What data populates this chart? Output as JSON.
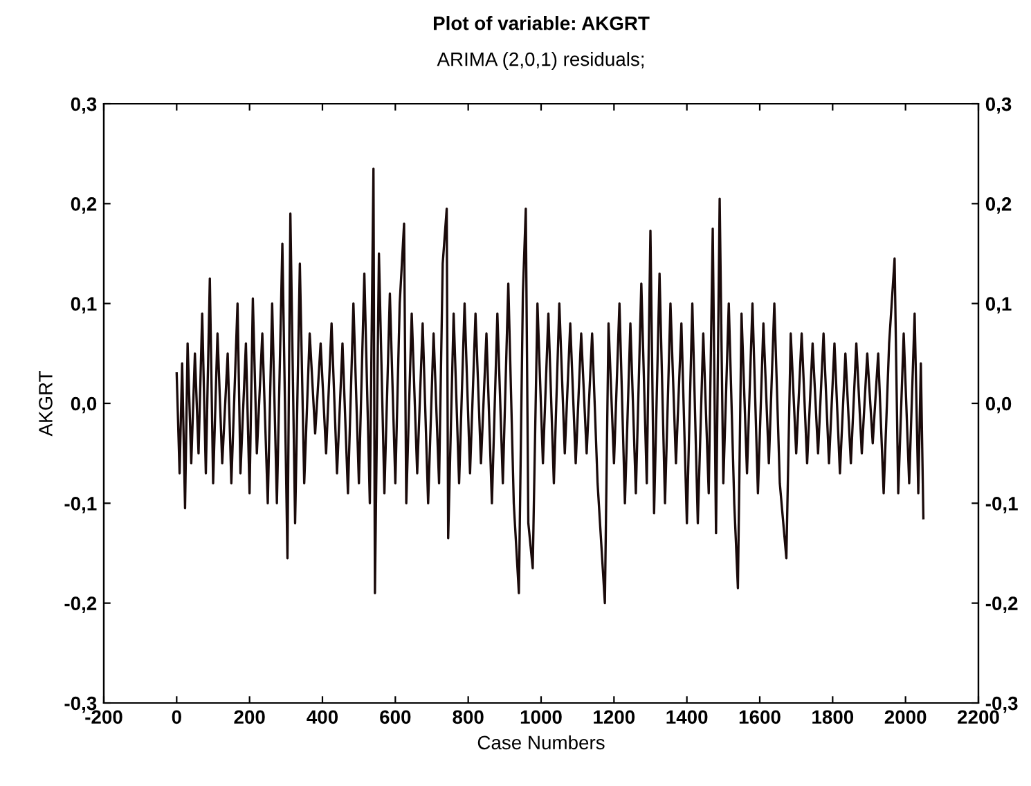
{
  "chart_data": {
    "type": "line",
    "title": "Plot of variable: AKGRT",
    "subtitle": "ARIMA (2,0,1) residuals;",
    "xlabel": "Case Numbers",
    "ylabel": "AKGRT",
    "xlim": [
      -200,
      2200
    ],
    "xticks": [
      -200,
      0,
      200,
      400,
      600,
      800,
      1000,
      1200,
      1400,
      1600,
      1800,
      2000,
      2200
    ],
    "ylim": [
      -0.3,
      0.3
    ],
    "yticks": [
      {
        "value": -0.3,
        "label": "-0,3"
      },
      {
        "value": -0.2,
        "label": "-0,2"
      },
      {
        "value": -0.1,
        "label": "-0,1"
      },
      {
        "value": 0.0,
        "label": "0,0"
      },
      {
        "value": 0.1,
        "label": "0,1"
      },
      {
        "value": 0.2,
        "label": "0,2"
      },
      {
        "value": 0.3,
        "label": "0,3"
      }
    ],
    "y2lim": [
      -0.3,
      0.3
    ],
    "y2ticks": [
      {
        "value": -0.3,
        "label": "-0,3"
      },
      {
        "value": -0.2,
        "label": "-0,2"
      },
      {
        "value": -0.1,
        "label": "-0,1"
      },
      {
        "value": 0.0,
        "label": "0,0"
      },
      {
        "value": 0.1,
        "label": "0,1"
      },
      {
        "value": 0.2,
        "label": "0,2"
      },
      {
        "value": 0.3,
        "label": "0,3"
      }
    ],
    "grid": false,
    "legend": false,
    "series": [
      {
        "color": "#1a0a0a",
        "x": [
          0,
          8,
          15,
          23,
          30,
          40,
          50,
          60,
          70,
          80,
          91,
          100,
          112,
          125,
          140,
          150,
          167,
          175,
          190,
          200,
          209,
          220,
          235,
          250,
          262,
          275,
          290,
          304,
          312,
          325,
          338,
          350,
          365,
          380,
          395,
          410,
          425,
          440,
          455,
          470,
          485,
          500,
          515,
          530,
          540,
          544,
          555,
          570,
          585,
          600,
          612,
          624,
          630,
          645,
          660,
          675,
          690,
          705,
          720,
          730,
          741,
          745,
          760,
          775,
          790,
          805,
          820,
          835,
          850,
          865,
          880,
          895,
          910,
          925,
          939,
          950,
          958,
          965,
          977,
          990,
          1005,
          1020,
          1035,
          1050,
          1065,
          1080,
          1095,
          1110,
          1125,
          1140,
          1155,
          1175,
          1185,
          1200,
          1215,
          1230,
          1245,
          1260,
          1275,
          1290,
          1300,
          1310,
          1325,
          1340,
          1355,
          1370,
          1385,
          1400,
          1415,
          1430,
          1445,
          1460,
          1471,
          1480,
          1490,
          1500,
          1515,
          1530,
          1540,
          1550,
          1565,
          1580,
          1595,
          1610,
          1625,
          1640,
          1655,
          1673,
          1685,
          1700,
          1715,
          1730,
          1745,
          1760,
          1775,
          1790,
          1805,
          1820,
          1835,
          1850,
          1865,
          1880,
          1895,
          1910,
          1925,
          1940,
          1955,
          1970,
          1980,
          1995,
          2010,
          2025,
          2035,
          2042,
          2049
        ],
        "values": [
          0.03,
          -0.07,
          0.04,
          -0.105,
          0.06,
          -0.06,
          0.05,
          -0.05,
          0.09,
          -0.07,
          0.125,
          -0.08,
          0.07,
          -0.06,
          0.05,
          -0.08,
          0.1,
          -0.07,
          0.06,
          -0.09,
          0.105,
          -0.05,
          0.07,
          -0.1,
          0.1,
          -0.1,
          0.16,
          -0.155,
          0.19,
          -0.12,
          0.14,
          -0.08,
          0.07,
          -0.03,
          0.06,
          -0.05,
          0.08,
          -0.07,
          0.06,
          -0.09,
          0.1,
          -0.08,
          0.13,
          -0.1,
          0.235,
          -0.19,
          0.15,
          -0.09,
          0.11,
          -0.08,
          0.1,
          0.18,
          -0.1,
          0.09,
          -0.07,
          0.08,
          -0.1,
          0.07,
          -0.08,
          0.14,
          0.195,
          -0.135,
          0.09,
          -0.08,
          0.1,
          -0.07,
          0.09,
          -0.06,
          0.07,
          -0.1,
          0.09,
          -0.08,
          0.12,
          -0.1,
          -0.19,
          0.11,
          0.195,
          -0.12,
          -0.165,
          0.1,
          -0.06,
          0.09,
          -0.08,
          0.1,
          -0.05,
          0.08,
          -0.06,
          0.07,
          -0.05,
          0.07,
          -0.08,
          -0.2,
          0.08,
          -0.06,
          0.1,
          -0.1,
          0.08,
          -0.09,
          0.12,
          -0.08,
          0.173,
          -0.11,
          0.13,
          -0.1,
          0.1,
          -0.06,
          0.08,
          -0.12,
          0.1,
          -0.12,
          0.07,
          -0.09,
          0.175,
          -0.13,
          0.205,
          -0.08,
          0.1,
          -0.1,
          -0.185,
          0.09,
          -0.07,
          0.1,
          -0.09,
          0.08,
          -0.06,
          0.1,
          -0.08,
          -0.155,
          0.07,
          -0.05,
          0.07,
          -0.06,
          0.06,
          -0.05,
          0.07,
          -0.06,
          0.06,
          -0.07,
          0.05,
          -0.06,
          0.06,
          -0.05,
          0.05,
          -0.04,
          0.05,
          -0.09,
          0.06,
          0.145,
          -0.09,
          0.07,
          -0.08,
          0.09,
          -0.09,
          0.04,
          -0.115
        ]
      }
    ]
  }
}
